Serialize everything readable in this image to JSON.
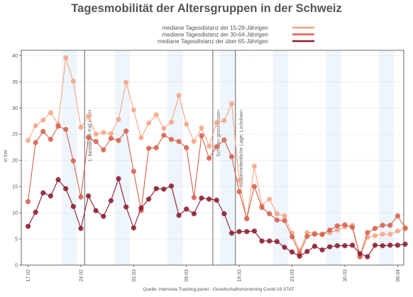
{
  "chart_data": {
    "type": "line",
    "title": "Tagesmobilität der Altersgruppen in der Schweiz",
    "ylabel": "in km",
    "xlabel": "",
    "source": "Quelle: intervista Tracking-panel - Gesellschaftsmonitoring Covid-19 STAT",
    "ylim": [
      0,
      41
    ],
    "yticks": [
      0,
      5,
      10,
      15,
      20,
      25,
      30,
      35,
      40
    ],
    "date_start": "2020-02-17",
    "xtick_labels": [
      "17.02",
      "24.02",
      "02.03",
      "09.03",
      "16.03",
      "23.03",
      "30.03",
      "06.04"
    ],
    "grid": true,
    "legend_position": "top",
    "shaded_weekends": [
      [
        "2020-02-22",
        "2020-02-23"
      ],
      [
        "2020-02-29",
        "2020-03-01"
      ],
      [
        "2020-03-07",
        "2020-03-08"
      ],
      [
        "2020-03-14",
        "2020-03-15"
      ],
      [
        "2020-03-21",
        "2020-03-22"
      ],
      [
        "2020-03-28",
        "2020-03-29"
      ],
      [
        "2020-04-04",
        "2020-04-05"
      ]
    ],
    "annotations": [
      {
        "date": "2020-02-25",
        "label": "1. bestätigter Fall in CH"
      },
      {
        "date": "2020-03-13",
        "label": "Schulen geschlossen"
      },
      {
        "date": "2020-03-16",
        "label": "Ausserordentliche Lage: Lockdown"
      }
    ],
    "series": [
      {
        "name": "mediane Tagesdistanz der 15-29-Jährigen",
        "color": "#f4a582",
        "values": [
          23.8,
          26.6,
          27.7,
          29.1,
          26.9,
          39.6,
          35.1,
          26.3,
          28.4,
          25.0,
          25.3,
          25.1,
          27.8,
          34.9,
          29.6,
          24.3,
          27.1,
          28.7,
          26.1,
          27.3,
          32.4,
          26.9,
          23.6,
          26.2,
          22.7,
          27.2,
          27.6,
          30.8,
          16.2,
          8.8,
          18.9,
          11.4,
          12.6,
          9.8,
          9.4,
          6.1,
          2.8,
          6.2,
          6.1,
          5.8,
          6.2,
          6.7,
          7.3,
          7.6,
          1.6,
          5.3,
          5.6,
          5.9,
          5.9,
          6.5,
          6.9
        ],
        "marker_size": 3.3
      },
      {
        "name": "mediane Tagesdistanz der 30-64-Jährigen",
        "color": "#d6604d",
        "values": [
          12.1,
          23.4,
          25.5,
          24.0,
          26.5,
          25.9,
          19.9,
          13.0,
          24.4,
          23.6,
          22.0,
          24.2,
          23.8,
          25.6,
          17.9,
          10.4,
          22.3,
          22.4,
          24.8,
          24.0,
          23.6,
          22.4,
          12.9,
          24.7,
          20.4,
          22.6,
          23.9,
          20.7,
          14.0,
          8.9,
          15.0,
          11.0,
          9.8,
          8.6,
          8.5,
          5.4,
          2.2,
          5.5,
          5.9,
          5.9,
          6.7,
          7.5,
          7.7,
          7.2,
          1.6,
          6.2,
          7.0,
          7.6,
          7.6,
          9.4,
          7.1
        ],
        "marker_size": 3.4
      },
      {
        "name": "mediane Tagesdistanz der über 65-Jährigen",
        "color": "#8b1a2b",
        "values": [
          7.4,
          10.1,
          13.8,
          13.2,
          16.3,
          14.6,
          11.2,
          7.0,
          13.2,
          10.4,
          9.3,
          12.3,
          16.5,
          11.1,
          7.1,
          10.9,
          12.6,
          14.6,
          14.5,
          15.1,
          9.5,
          10.7,
          9.8,
          12.8,
          12.6,
          12.4,
          9.8,
          6.1,
          6.4,
          6.4,
          6.5,
          4.6,
          4.6,
          4.5,
          3.4,
          2.5,
          1.7,
          2.6,
          3.6,
          2.9,
          3.5,
          3.7,
          3.7,
          3.8,
          2.2,
          1.6,
          3.8,
          3.7,
          3.8,
          3.8,
          4.0
        ],
        "marker_size": 3.4
      }
    ]
  }
}
